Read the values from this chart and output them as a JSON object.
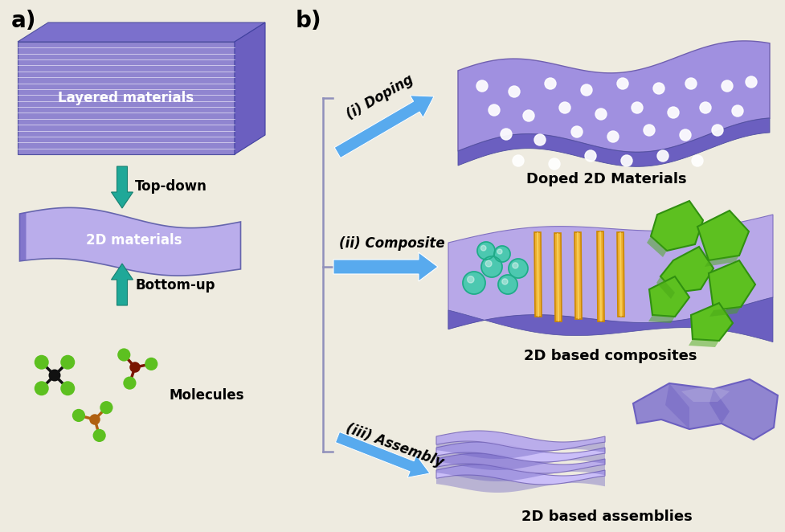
{
  "bg_color": "#eeebe0",
  "purple_dark": "#6B5FC0",
  "purple_top": "#7B70CC",
  "purple_mid": "#9085D0",
  "purple_light": "#B8AAEC",
  "purple_lighter": "#C8BCFA",
  "purple_pale": "#C0B0E8",
  "purple_sheet": "#8878CC",
  "teal": "#1FA898",
  "teal_dark": "#178070",
  "blue_arrow": "#58AAEE",
  "blue_arrow_light": "#88CCFF",
  "green_bright": "#5DC020",
  "green_mid": "#48A818",
  "green_dark": "#309010",
  "teal_ball": "#40CCAA",
  "teal_ball_dark": "#20AA88",
  "orange_rod": "#CC8800",
  "orange_rod_light": "#EEB030",
  "label_a": "a)",
  "label_b": "b)",
  "layered_text": "Layered materials",
  "twoD_text": "2D materials",
  "molecules_text": "Molecules",
  "topdown_text": "Top-down",
  "bottomup_text": "Bottom-up",
  "doping_text": "(i) Doping",
  "composite_text": "(ii) Composite",
  "assembly_text": "(iii) Assembly",
  "doped_title": "Doped 2D Materials",
  "composite_title": "2D based composites",
  "assembly_title": "2D based assemblies"
}
